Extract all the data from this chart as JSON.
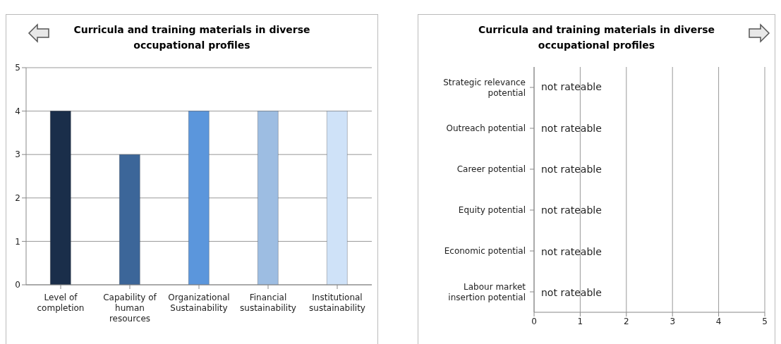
{
  "chart_data": [
    {
      "type": "bar",
      "title": "Curricula and training materials in diverse occupational profiles",
      "categories": [
        "Level of completion",
        "Capability of human resources",
        "Organizational Sustainability",
        "Financial sustainability",
        "Institutional sustainability"
      ],
      "values": [
        4,
        3,
        4,
        4,
        4
      ],
      "colors": [
        "#1a2e4a",
        "#3c6699",
        "#5b96dc",
        "#9dbde2",
        "#cfe2f8"
      ],
      "ylim": [
        0,
        5
      ],
      "yticks": [
        0,
        1,
        2,
        3,
        4,
        5
      ],
      "grid": "y"
    },
    {
      "type": "bar",
      "orientation": "horizontal",
      "title": "Curricula and training materials in diverse occupational profiles",
      "categories": [
        "Strategic relevance potential",
        "Outreach potential",
        "Career potential",
        "Equity potential",
        "Economic potential",
        "Labour market insertion potential"
      ],
      "values": [
        null,
        null,
        null,
        null,
        null,
        null
      ],
      "value_labels": [
        "not rateable",
        "not rateable",
        "not rateable",
        "not rateable",
        "not rateable",
        "not rateable"
      ],
      "xlim": [
        0,
        5
      ],
      "xticks": [
        0,
        1,
        2,
        3,
        4,
        5
      ],
      "grid": "x"
    }
  ]
}
